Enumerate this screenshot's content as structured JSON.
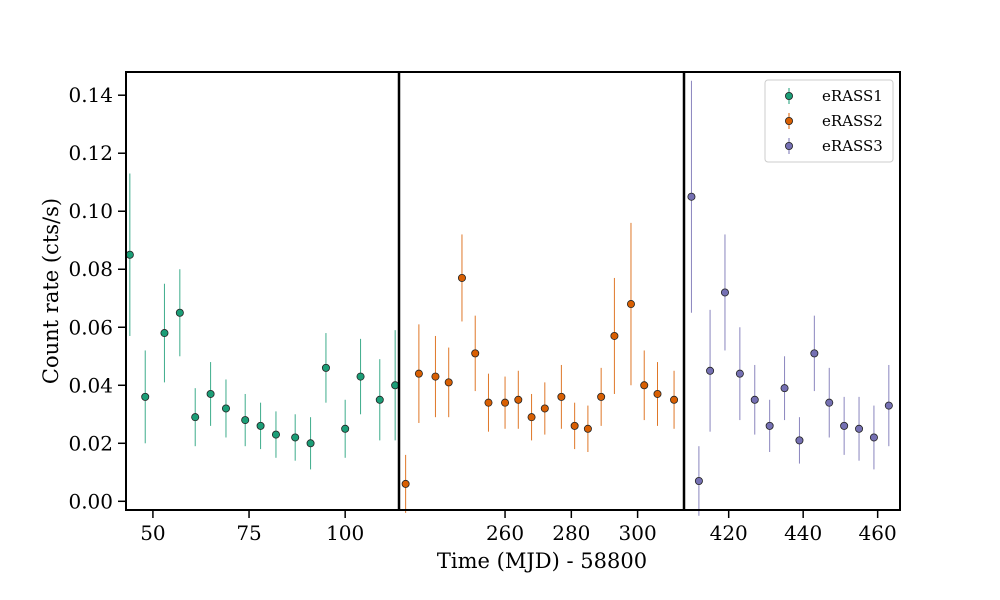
{
  "chart_data": {
    "type": "scatter",
    "title": "",
    "xlabel": "Time (MJD) - 58800",
    "ylabel": "Count rate (cts/s)",
    "ylim": [
      -0.003,
      0.148
    ],
    "yticks": [
      0.0,
      0.02,
      0.04,
      0.06,
      0.08,
      0.1,
      0.12,
      0.14
    ],
    "ytick_labels": [
      "0.00",
      "0.02",
      "0.04",
      "0.06",
      "0.08",
      "0.10",
      "0.12",
      "0.14"
    ],
    "grid": false,
    "legend_position": "top-right",
    "panels": [
      {
        "xlim": [
          43,
          114
        ],
        "xticks": [
          50,
          75,
          100
        ],
        "series": [
          {
            "name": "eRASS1",
            "color": "#1b9e77",
            "x": [
              44,
              48,
              53,
              57,
              61,
              65,
              69,
              74,
              78,
              82,
              87,
              91,
              95,
              100,
              104,
              109,
              113
            ],
            "y": [
              0.085,
              0.036,
              0.058,
              0.065,
              0.029,
              0.037,
              0.032,
              0.028,
              0.026,
              0.023,
              0.022,
              0.02,
              0.046,
              0.025,
              0.043,
              0.035,
              0.04
            ],
            "err": [
              0.028,
              0.016,
              0.017,
              0.015,
              0.01,
              0.011,
              0.01,
              0.009,
              0.008,
              0.008,
              0.008,
              0.009,
              0.012,
              0.01,
              0.013,
              0.014,
              0.019
            ]
          }
        ]
      },
      {
        "xlim": [
          228,
          314
        ],
        "xticks": [
          260,
          280,
          300
        ],
        "series": [
          {
            "name": "eRASS2",
            "color": "#d95f02",
            "x": [
              230,
              234,
              239,
              243,
              247,
              251,
              255,
              260,
              264,
              268,
              272,
              277,
              281,
              285,
              289,
              293,
              298,
              302,
              306,
              311
            ],
            "y": [
              0.006,
              0.044,
              0.043,
              0.041,
              0.077,
              0.051,
              0.034,
              0.034,
              0.035,
              0.029,
              0.032,
              0.036,
              0.026,
              0.025,
              0.036,
              0.057,
              0.068,
              0.04,
              0.037,
              0.035
            ],
            "err": [
              0.01,
              0.017,
              0.014,
              0.012,
              0.015,
              0.013,
              0.01,
              0.009,
              0.01,
              0.008,
              0.009,
              0.011,
              0.008,
              0.008,
              0.01,
              0.02,
              0.028,
              0.012,
              0.011,
              0.01
            ]
          }
        ]
      },
      {
        "xlim": [
          408,
          466
        ],
        "xticks": [
          420,
          440,
          460
        ],
        "series": [
          {
            "name": "eRASS3",
            "color": "#7570b3",
            "x": [
              410,
              412,
              415,
              419,
              423,
              427,
              431,
              435,
              439,
              443,
              447,
              451,
              455,
              459,
              463
            ],
            "y": [
              0.105,
              0.007,
              0.045,
              0.072,
              0.044,
              0.035,
              0.026,
              0.039,
              0.021,
              0.051,
              0.034,
              0.026,
              0.025,
              0.022,
              0.033
            ],
            "err": [
              0.04,
              0.012,
              0.021,
              0.02,
              0.016,
              0.012,
              0.009,
              0.011,
              0.008,
              0.013,
              0.012,
              0.01,
              0.011,
              0.011,
              0.014
            ]
          }
        ]
      }
    ]
  }
}
